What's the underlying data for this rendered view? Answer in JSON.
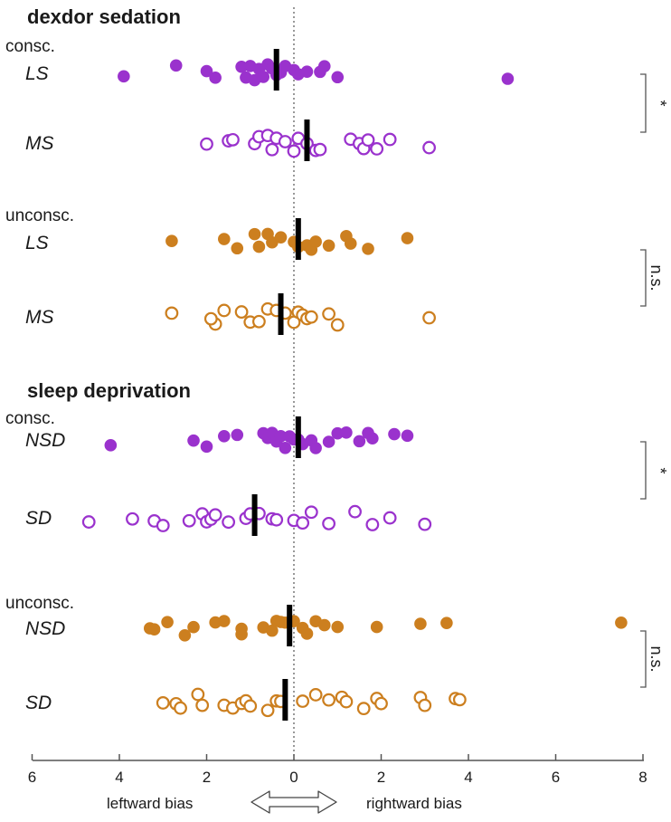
{
  "chart_data": {
    "type": "scatter",
    "title": "",
    "xlim": [
      -6,
      8
    ],
    "x_ticks": [
      -6,
      -4,
      -2,
      0,
      2,
      4,
      6,
      8
    ],
    "x_tick_labels": [
      "6",
      "4",
      "2",
      "0",
      "2",
      "4",
      "6",
      "8"
    ],
    "xlabel_left": "leftward bias",
    "xlabel_right": "rightward bias",
    "zero_line": "dotted",
    "colors": {
      "conscious": "#9a32cd",
      "unconscious": "#cc7f1f",
      "median": "#000000",
      "axis": "#555555"
    },
    "sections": [
      {
        "title": "dexdor sedation",
        "groups": [
          {
            "condition": "consc.",
            "color": "conscious",
            "significance": "*",
            "rows": [
              {
                "label": "LS",
                "filled": true,
                "median": -0.4,
                "values": [
                  -3.9,
                  -2.7,
                  -2.0,
                  -1.8,
                  -1.2,
                  -1.1,
                  -1.0,
                  -0.9,
                  -0.8,
                  -0.7,
                  -0.6,
                  -0.5,
                  -0.4,
                  -0.3,
                  -0.2,
                  0.0,
                  0.1,
                  0.3,
                  0.6,
                  0.7,
                  1.0,
                  4.9
                ]
              },
              {
                "label": "MS",
                "filled": false,
                "median": 0.3,
                "values": [
                  -2.0,
                  -1.5,
                  -1.4,
                  -0.9,
                  -0.8,
                  -0.6,
                  -0.5,
                  -0.4,
                  -0.2,
                  0.0,
                  0.1,
                  0.3,
                  0.5,
                  0.6,
                  1.3,
                  1.5,
                  1.6,
                  1.7,
                  1.9,
                  2.2,
                  3.1
                ]
              }
            ]
          },
          {
            "condition": "unconsc.",
            "color": "unconscious",
            "significance": "n.s.",
            "rows": [
              {
                "label": "LS",
                "filled": true,
                "median": 0.1,
                "values": [
                  -2.8,
                  -1.6,
                  -1.3,
                  -0.9,
                  -0.8,
                  -0.6,
                  -0.5,
                  -0.3,
                  0.0,
                  0.1,
                  0.3,
                  0.4,
                  0.5,
                  0.8,
                  1.2,
                  1.3,
                  1.7,
                  2.6
                ]
              },
              {
                "label": "MS",
                "filled": false,
                "median": -0.3,
                "values": [
                  -2.8,
                  -1.8,
                  -1.9,
                  -1.6,
                  -1.2,
                  -1.0,
                  -0.8,
                  -0.6,
                  -0.4,
                  -0.2,
                  0.0,
                  0.1,
                  0.2,
                  0.3,
                  0.4,
                  0.8,
                  1.0,
                  3.1
                ]
              }
            ]
          }
        ]
      },
      {
        "title": "sleep deprivation",
        "groups": [
          {
            "condition": "consc.",
            "color": "conscious",
            "significance": "*",
            "rows": [
              {
                "label": "NSD",
                "filled": true,
                "median": 0.1,
                "values": [
                  -4.2,
                  -2.3,
                  -2.0,
                  -1.6,
                  -1.3,
                  -0.7,
                  -0.6,
                  -0.5,
                  -0.4,
                  -0.3,
                  -0.2,
                  -0.1,
                  0.0,
                  0.1,
                  0.2,
                  0.4,
                  0.5,
                  0.8,
                  1.0,
                  1.2,
                  1.5,
                  1.7,
                  1.8,
                  2.3,
                  2.6
                ]
              },
              {
                "label": "SD",
                "filled": false,
                "median": -0.9,
                "values": [
                  -4.7,
                  -3.7,
                  -3.2,
                  -3.0,
                  -2.4,
                  -2.1,
                  -2.0,
                  -1.9,
                  -1.8,
                  -1.5,
                  -1.1,
                  -1.0,
                  -0.8,
                  -0.5,
                  -0.4,
                  0.0,
                  0.2,
                  0.4,
                  0.8,
                  1.4,
                  1.8,
                  2.2,
                  3.0
                ]
              }
            ]
          },
          {
            "condition": "unconsc.",
            "color": "unconscious",
            "significance": "n.s.",
            "rows": [
              {
                "label": "NSD",
                "filled": true,
                "median": -0.1,
                "values": [
                  -3.3,
                  -3.2,
                  -2.9,
                  -2.3,
                  -2.5,
                  -1.8,
                  -1.6,
                  -1.2,
                  -1.2,
                  -0.7,
                  -0.5,
                  -0.4,
                  -0.3,
                  -0.2,
                  0.0,
                  0.2,
                  0.3,
                  0.5,
                  0.7,
                  1.0,
                  1.9,
                  2.9,
                  3.5,
                  7.5
                ]
              },
              {
                "label": "SD",
                "filled": false,
                "median": -0.2,
                "values": [
                  -3.0,
                  -2.7,
                  -2.6,
                  -2.2,
                  -2.1,
                  -1.6,
                  -1.4,
                  -1.2,
                  -1.1,
                  -1.0,
                  -0.6,
                  -0.4,
                  -0.3,
                  0.2,
                  0.5,
                  0.8,
                  1.1,
                  1.2,
                  1.6,
                  1.9,
                  2.0,
                  2.9,
                  3.0,
                  3.7,
                  3.8
                ]
              }
            ]
          }
        ]
      }
    ]
  }
}
